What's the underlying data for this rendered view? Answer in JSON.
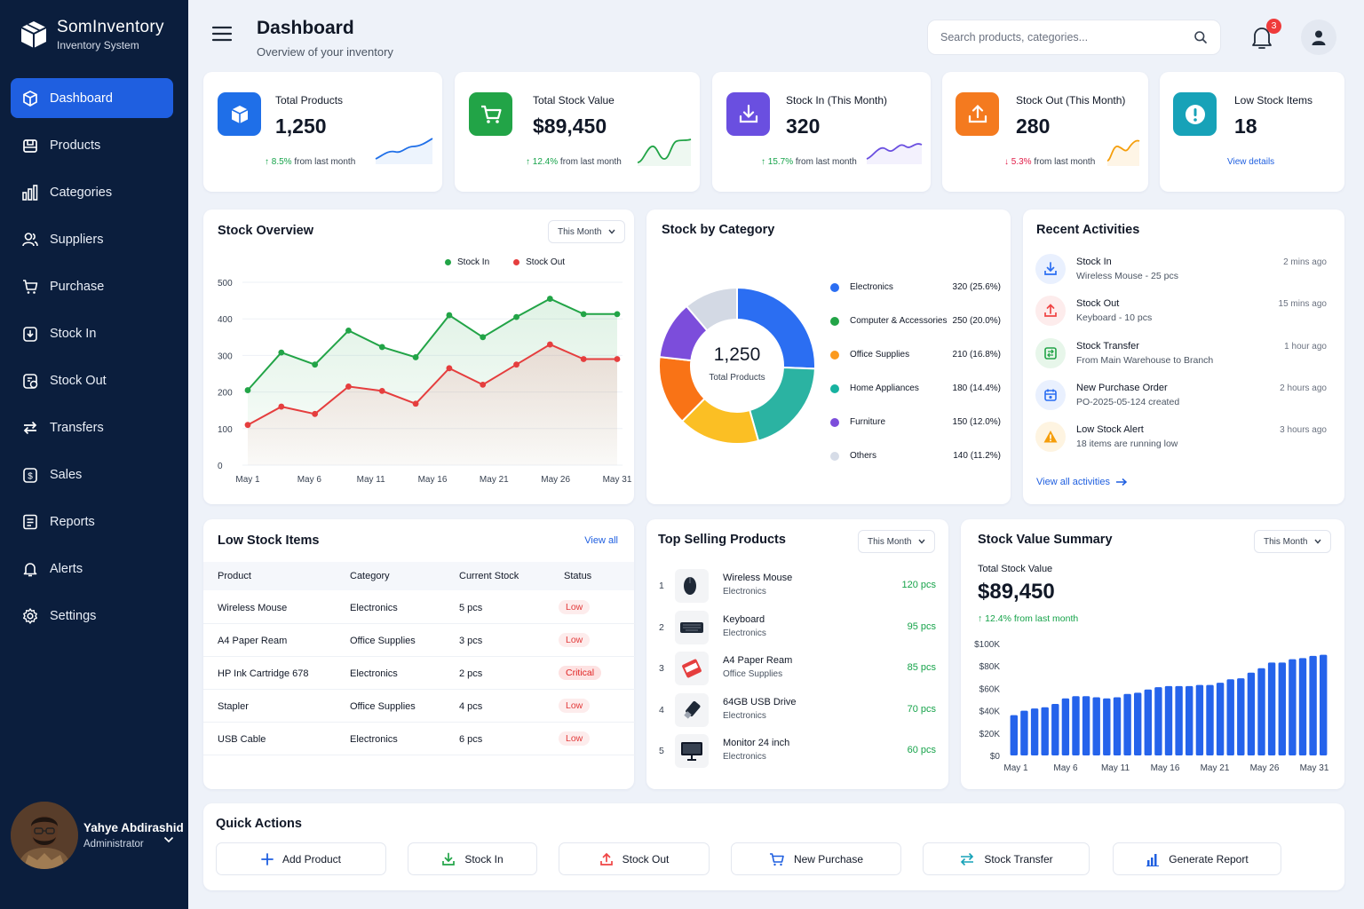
{
  "app": {
    "name": "SomInventory",
    "subtitle": "Inventory System"
  },
  "sidebar": {
    "items": [
      {
        "label": "Dashboard",
        "icon": "cube-icon",
        "active": true
      },
      {
        "label": "Products",
        "icon": "products-icon"
      },
      {
        "label": "Categories",
        "icon": "categories-icon"
      },
      {
        "label": "Suppliers",
        "icon": "suppliers-icon"
      },
      {
        "label": "Purchase",
        "icon": "cart-icon"
      },
      {
        "label": "Stock In",
        "icon": "stock-in-icon"
      },
      {
        "label": "Stock Out",
        "icon": "stock-out-icon"
      },
      {
        "label": "Transfers",
        "icon": "transfer-icon"
      },
      {
        "label": "Sales",
        "icon": "sales-icon"
      },
      {
        "label": "Reports",
        "icon": "reports-icon"
      },
      {
        "label": "Alerts",
        "icon": "bell-icon"
      },
      {
        "label": "Settings",
        "icon": "gear-icon"
      }
    ],
    "user": {
      "name": "Yahye Abdirashid",
      "role": "Administrator"
    }
  },
  "header": {
    "title": "Dashboard",
    "subtitle": "Overview of your inventory",
    "search_placeholder": "Search products, categories...",
    "notification_count": "3"
  },
  "stats": [
    {
      "label": "Total Products",
      "value": "1,250",
      "change": "8.5%",
      "change_text": "from last month",
      "direction": "up",
      "color": "#1f6fe8",
      "icon": "box-icon"
    },
    {
      "label": "Total Stock Value",
      "value": "$89,450",
      "change": "12.4%",
      "change_text": "from last month",
      "direction": "up",
      "color": "#22a447",
      "icon": "cart-icon"
    },
    {
      "label": "Stock In (This Month)",
      "value": "320",
      "change": "15.7%",
      "change_text": "from last month",
      "direction": "up",
      "color": "#6a4fe0",
      "icon": "download-icon"
    },
    {
      "label": "Stock Out (This Month)",
      "value": "280",
      "change": "5.3%",
      "change_text": "from last month",
      "direction": "down",
      "color": "#f47a1f",
      "icon": "upload-icon"
    },
    {
      "label": "Low Stock Items",
      "value": "18",
      "link": "View details",
      "color": "#17a2b8",
      "icon": "alert-icon"
    }
  ],
  "stock_overview": {
    "title": "Stock Overview",
    "period": "This Month",
    "chart_data": {
      "type": "line",
      "x": [
        "May 1",
        "May 4",
        "May 6",
        "May 9",
        "May 11",
        "May 14",
        "May 16",
        "May 21",
        "May 24",
        "May 27",
        "May 29",
        "May 31"
      ],
      "xticks": [
        "May 1",
        "May 6",
        "May 11",
        "May 16",
        "May 21",
        "May 26",
        "May 31"
      ],
      "series": [
        {
          "name": "Stock In",
          "color": "#22a447",
          "values": [
            205,
            308,
            275,
            368,
            323,
            295,
            410,
            350,
            405,
            455,
            413,
            413
          ]
        },
        {
          "name": "Stock Out",
          "color": "#e53e3e",
          "values": [
            110,
            160,
            140,
            215,
            203,
            168,
            265,
            220,
            275,
            330,
            290,
            290
          ]
        }
      ],
      "yticks": [
        0,
        100,
        200,
        300,
        400,
        500
      ],
      "ylim": [
        0,
        500
      ],
      "legend": "top-right"
    }
  },
  "stock_by_category": {
    "title": "Stock by Category",
    "center_value": "1,250",
    "center_label": "Total Products",
    "chart_data": {
      "type": "pie",
      "labels": [
        "Electronics",
        "Computer & Accessories",
        "Office Supplies",
        "Home Appliances",
        "Furniture",
        "Others"
      ],
      "values": [
        320,
        250,
        210,
        180,
        150,
        140
      ],
      "display": [
        "320 (25.6%)",
        "250 (20.0%)",
        "210 (16.8%)",
        "180 (14.4%)",
        "150 (12.0%)",
        "140 (11.2%)"
      ],
      "colors": [
        "#2b6ef2",
        "#2bb3a2",
        "#fbbf24",
        "#f97316",
        "#7c4ddb",
        "#d3d9e4"
      ],
      "legend_colors": [
        "#2b6ef2",
        "#22a447",
        "#fb9a1e",
        "#17b2a0",
        "#7c4ddb",
        "#d6dce7"
      ]
    }
  },
  "recent_activities": {
    "title": "Recent Activities",
    "items": [
      {
        "title": "Stock In",
        "desc": "Wireless Mouse - 25 pcs",
        "time": "2 mins ago",
        "icon": "download-icon",
        "color": "#2b6ef2",
        "bg": "#e9f0fe"
      },
      {
        "title": "Stock Out",
        "desc": "Keyboard - 10 pcs",
        "time": "15 mins ago",
        "icon": "upload-icon",
        "color": "#ef4444",
        "bg": "#fdecec"
      },
      {
        "title": "Stock Transfer",
        "desc": "From Main Warehouse to Branch",
        "time": "1 hour ago",
        "icon": "transfer-icon",
        "color": "#22a447",
        "bg": "#e7f6ea"
      },
      {
        "title": "New Purchase Order",
        "desc": "PO-2025-05-124 created",
        "time": "2 hours ago",
        "icon": "calendar-icon",
        "color": "#2b6ef2",
        "bg": "#e9f0fe"
      },
      {
        "title": "Low Stock Alert",
        "desc": "18 items are running low",
        "time": "3 hours ago",
        "icon": "warning-icon",
        "color": "#f59e0b",
        "bg": "#fef4e1"
      }
    ],
    "view_all": "View all activities"
  },
  "low_stock": {
    "title": "Low Stock Items",
    "view_all": "View all",
    "columns": [
      "Product",
      "Category",
      "Current Stock",
      "Status"
    ],
    "rows": [
      {
        "product": "Wireless Mouse",
        "category": "Electronics",
        "stock": "5 pcs",
        "status": "Low"
      },
      {
        "product": "A4 Paper Ream",
        "category": "Office Supplies",
        "stock": "3 pcs",
        "status": "Low"
      },
      {
        "product": "HP Ink Cartridge 678",
        "category": "Electronics",
        "stock": "2 pcs",
        "status": "Critical"
      },
      {
        "product": "Stapler",
        "category": "Office Supplies",
        "stock": "4 pcs",
        "status": "Low"
      },
      {
        "product": "USB Cable",
        "category": "Electronics",
        "stock": "6 pcs",
        "status": "Low"
      }
    ]
  },
  "top_selling": {
    "title": "Top Selling Products",
    "period": "This Month",
    "items": [
      {
        "rank": "1",
        "name": "Wireless Mouse",
        "category": "Electronics",
        "qty": "120 pcs",
        "icon": "mouse-icon"
      },
      {
        "rank": "2",
        "name": "Keyboard",
        "category": "Electronics",
        "qty": "95 pcs",
        "icon": "keyboard-icon"
      },
      {
        "rank": "3",
        "name": "A4 Paper Ream",
        "category": "Office Supplies",
        "qty": "85 pcs",
        "icon": "paper-icon"
      },
      {
        "rank": "4",
        "name": "64GB USB Drive",
        "category": "Electronics",
        "qty": "70 pcs",
        "icon": "usb-icon"
      },
      {
        "rank": "5",
        "name": "Monitor 24 inch",
        "category": "Electronics",
        "qty": "60 pcs",
        "icon": "monitor-icon"
      }
    ]
  },
  "stock_value": {
    "title": "Stock Value Summary",
    "period": "This Month",
    "label": "Total Stock Value",
    "value": "$89,450",
    "change": "12.4% from last month",
    "chart_data": {
      "type": "bar",
      "values": [
        36,
        40,
        42,
        43,
        46,
        51,
        53,
        53,
        52,
        51,
        52,
        55,
        56,
        59,
        61,
        62,
        62,
        62,
        63,
        63,
        65,
        68,
        69,
        74,
        78,
        83,
        83,
        86,
        87,
        89,
        90
      ],
      "xticks": [
        "May 1",
        "May 6",
        "May 11",
        "May 16",
        "May 21",
        "May 26",
        "May 31"
      ],
      "yticks": [
        "$0",
        "$20K",
        "$40K",
        "$60K",
        "$80K",
        "$100K"
      ],
      "ylim": [
        0,
        100
      ],
      "unit": "thousand USD",
      "color": "#2563eb"
    }
  },
  "quick_actions": {
    "title": "Quick Actions",
    "buttons": [
      {
        "label": "Add Product",
        "icon": "plus-icon"
      },
      {
        "label": "Stock In",
        "icon": "download-icon"
      },
      {
        "label": "Stock Out",
        "icon": "upload-icon"
      },
      {
        "label": "New Purchase",
        "icon": "cart-icon"
      },
      {
        "label": "Stock Transfer",
        "icon": "transfer-icon"
      },
      {
        "label": "Generate Report",
        "icon": "chart-icon"
      }
    ]
  }
}
